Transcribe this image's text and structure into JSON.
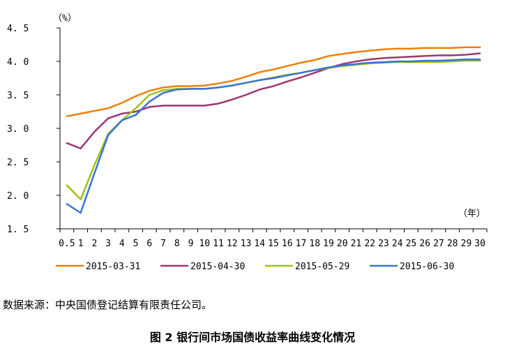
{
  "source_text": "数据来源：中央国债登记结算有限责任公司。",
  "caption": "图 2 银行间市场国债收益率曲线变化情况",
  "chart_data": {
    "type": "line",
    "y_unit": "（%）",
    "x_unit": "（年）",
    "ylim": [
      1.5,
      4.5
    ],
    "yticks": [
      "1.5",
      "2.0",
      "2.5",
      "3.0",
      "3.5",
      "4.0",
      "4.5"
    ],
    "categories": [
      "0.5",
      "1",
      "2",
      "3",
      "4",
      "5",
      "6",
      "7",
      "8",
      "9",
      "10",
      "11",
      "12",
      "13",
      "14",
      "15",
      "16",
      "17",
      "18",
      "19",
      "20",
      "21",
      "22",
      "23",
      "24",
      "25",
      "26",
      "27",
      "28",
      "29",
      "30"
    ],
    "grid": false,
    "legend_position": "bottom",
    "series": [
      {
        "name": "2015-03-31",
        "color": "#F07F09",
        "values": [
          3.18,
          3.22,
          3.26,
          3.3,
          3.38,
          3.48,
          3.56,
          3.61,
          3.63,
          3.63,
          3.64,
          3.67,
          3.71,
          3.77,
          3.84,
          3.88,
          3.93,
          3.98,
          4.02,
          4.08,
          4.11,
          4.14,
          4.16,
          4.18,
          4.19,
          4.19,
          4.2,
          4.2,
          4.2,
          4.21,
          4.21
        ]
      },
      {
        "name": "2015-04-30",
        "color": "#9E3572",
        "values": [
          2.78,
          2.7,
          2.95,
          3.15,
          3.22,
          3.25,
          3.32,
          3.34,
          3.34,
          3.34,
          3.34,
          3.37,
          3.43,
          3.5,
          3.58,
          3.63,
          3.7,
          3.76,
          3.83,
          3.9,
          3.96,
          4.0,
          4.03,
          4.05,
          4.06,
          4.07,
          4.08,
          4.09,
          4.09,
          4.1,
          4.12
        ]
      },
      {
        "name": "2015-05-29",
        "color": "#9BC412",
        "values": [
          2.15,
          1.94,
          2.45,
          2.92,
          3.12,
          3.3,
          3.5,
          3.57,
          3.59,
          3.59,
          3.59,
          3.61,
          3.64,
          3.68,
          3.72,
          3.76,
          3.8,
          3.83,
          3.87,
          3.9,
          3.93,
          3.95,
          3.97,
          3.98,
          3.99,
          3.99,
          3.99,
          3.99,
          4.0,
          4.01,
          4.01
        ]
      },
      {
        "name": "2015-06-30",
        "color": "#3B72D8",
        "values": [
          1.87,
          1.74,
          2.33,
          2.9,
          3.12,
          3.2,
          3.4,
          3.53,
          3.58,
          3.59,
          3.59,
          3.61,
          3.64,
          3.68,
          3.72,
          3.75,
          3.79,
          3.83,
          3.87,
          3.91,
          3.94,
          3.96,
          3.98,
          3.99,
          4.0,
          4.0,
          4.01,
          4.01,
          4.02,
          4.03,
          4.03
        ]
      }
    ]
  }
}
